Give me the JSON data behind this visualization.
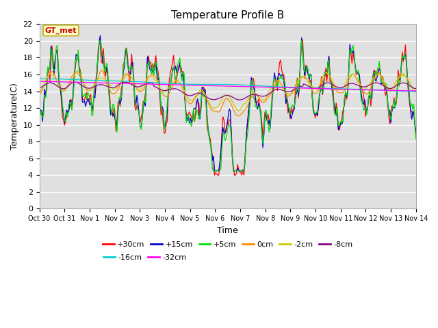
{
  "title": "Temperature Profile B",
  "xlabel": "Time",
  "ylabel": "Temperature(C)",
  "ylim": [
    0,
    22
  ],
  "yticks": [
    0,
    2,
    4,
    6,
    8,
    10,
    12,
    14,
    16,
    18,
    20,
    22
  ],
  "x_labels": [
    "Oct 30",
    "Oct 31",
    "Nov 1",
    "Nov 2",
    "Nov 3",
    "Nov 4",
    "Nov 5",
    "Nov 6",
    "Nov 7",
    "Nov 8",
    "Nov 9",
    "Nov 10",
    "Nov 11",
    "Nov 12",
    "Nov 13",
    "Nov 14"
  ],
  "annotation_text": "GT_met",
  "annotation_bg": "#ffffcc",
  "annotation_edge": "#bbaa00",
  "annotation_text_color": "#cc0000",
  "plot_bg": "#e0e0e0",
  "series_colors": {
    "+30cm": "#ff0000",
    "+15cm": "#0000cc",
    "+5cm": "#00dd00",
    "0cm": "#ff8800",
    "-2cm": "#cccc00",
    "-8cm": "#880088",
    "-16cm": "#00cccc",
    "-32cm": "#ff00ff"
  },
  "legend_order": [
    "+30cm",
    "+15cm",
    "+5cm",
    "0cm",
    "-2cm",
    "-8cm",
    "-16cm",
    "-32cm"
  ],
  "legend_row1": [
    "+30cm",
    "+15cm",
    "+5cm",
    "0cm",
    "-2cm",
    "-8cm"
  ],
  "legend_row2": [
    "-16cm",
    "-32cm"
  ]
}
